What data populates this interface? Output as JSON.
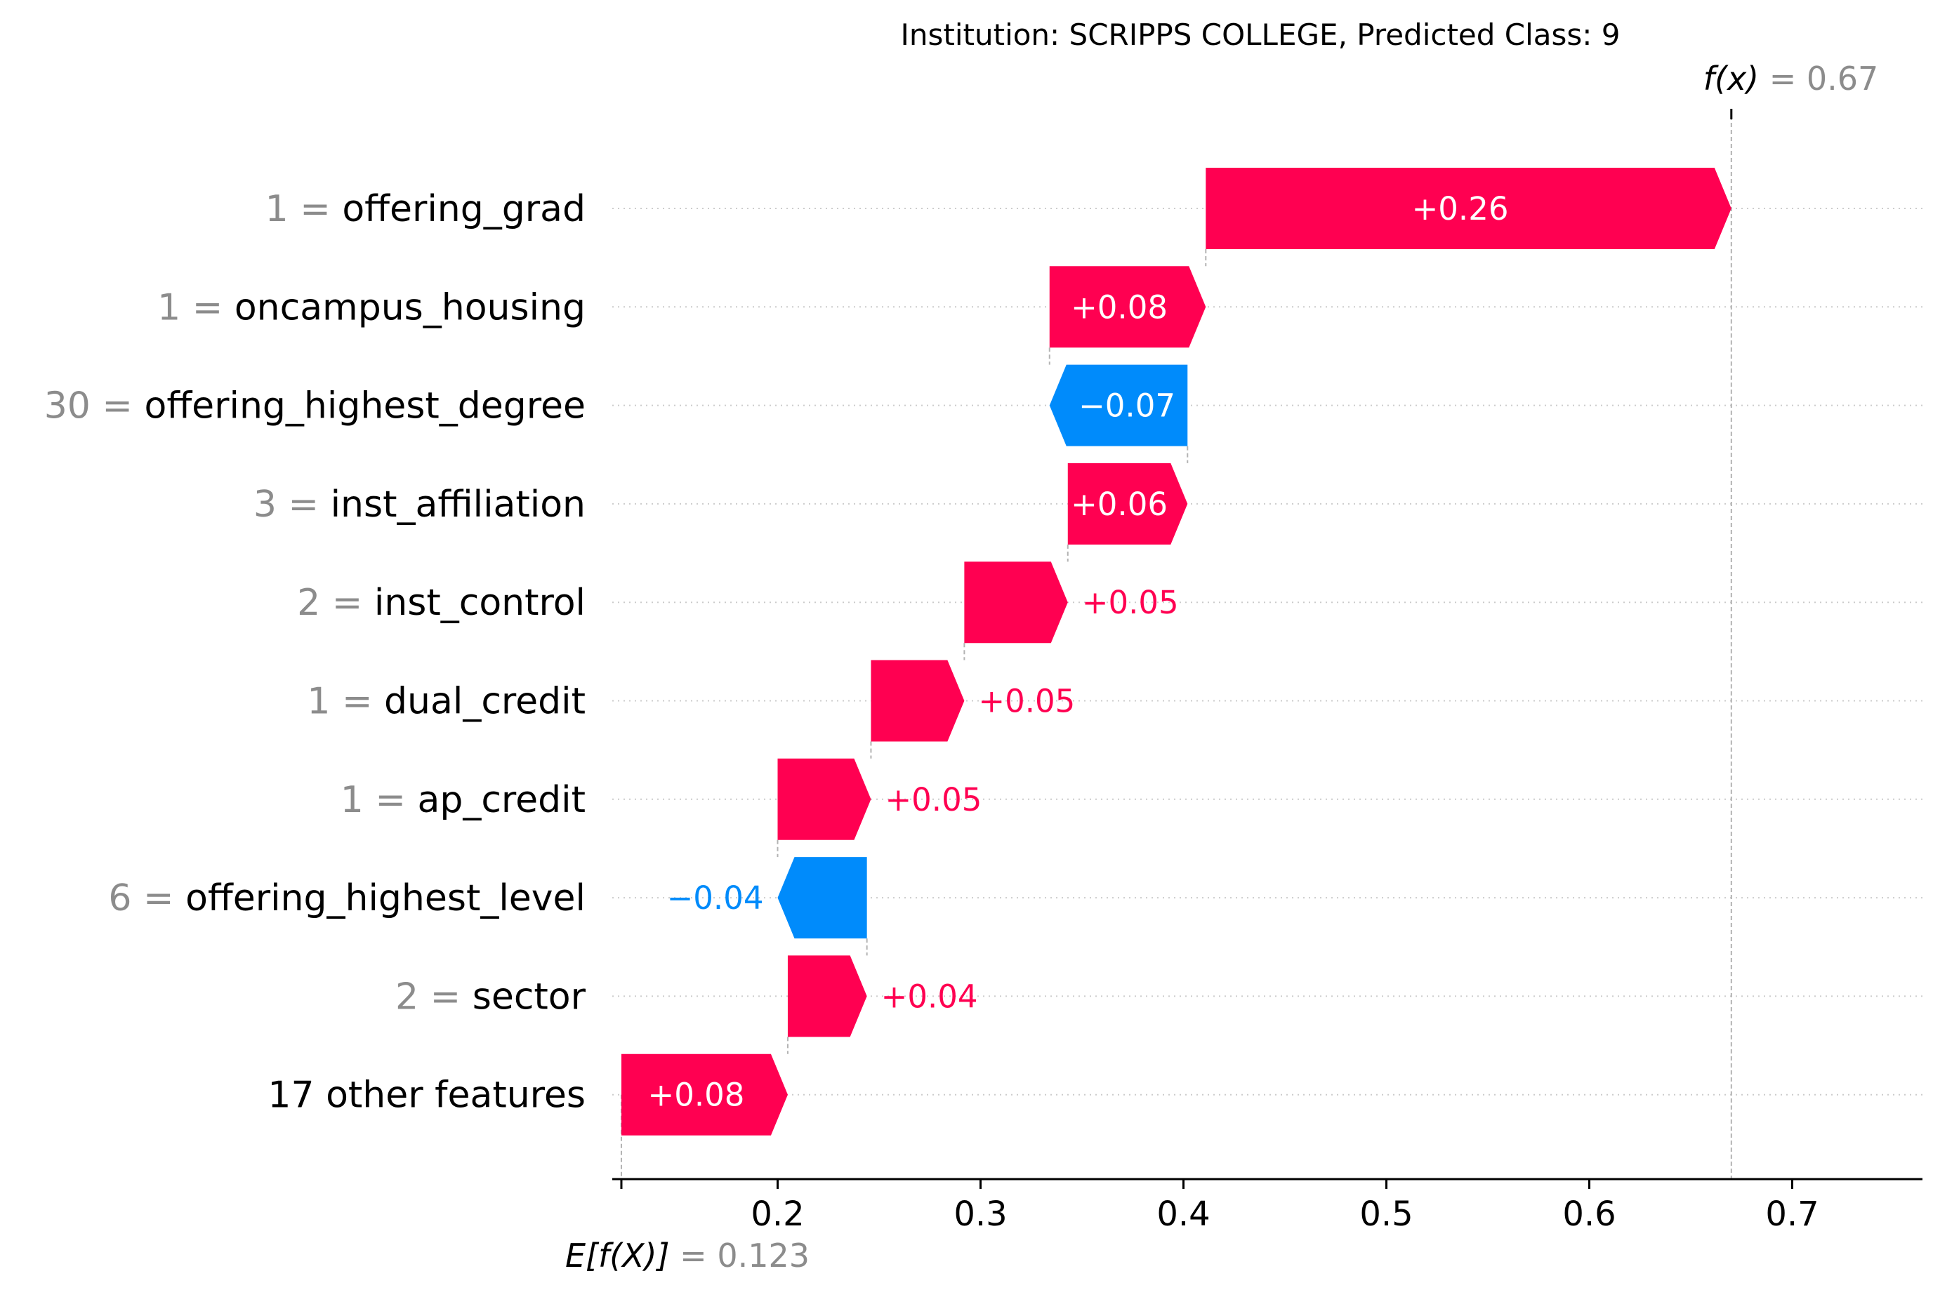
{
  "chart_data": {
    "type": "waterfall",
    "title": "Institution: SCRIPPS COLLEGE, Predicted Class: 9",
    "base_value": 0.123,
    "output_value": 0.67,
    "expected_label": {
      "symbol": "E[f(X)]",
      "eq": " = ",
      "value": "0.123"
    },
    "output_label": {
      "symbol": "f(x)",
      "eq": " = ",
      "value": "0.67"
    },
    "xlim": [
      0.12,
      0.76
    ],
    "xticks": [
      0.2,
      0.3,
      0.4,
      0.5,
      0.6,
      0.7
    ],
    "xtick_labels": [
      "0.2",
      "0.3",
      "0.4",
      "0.5",
      "0.6",
      "0.7"
    ],
    "features": [
      {
        "value_text": "1",
        "name": "offering_grad",
        "label": "+0.26",
        "start": 0.411,
        "end": 0.67
      },
      {
        "value_text": "1",
        "name": "oncampus_housing",
        "label": "+0.08",
        "start": 0.334,
        "end": 0.411
      },
      {
        "value_text": "30",
        "name": "offering_highest_degree",
        "label": "−0.07",
        "start": 0.402,
        "end": 0.334
      },
      {
        "value_text": "3",
        "name": "inst_affiliation",
        "label": "+0.06",
        "start": 0.343,
        "end": 0.402
      },
      {
        "value_text": "2",
        "name": "inst_control",
        "label": "+0.05",
        "start": 0.292,
        "end": 0.343
      },
      {
        "value_text": "1",
        "name": "dual_credit",
        "label": "+0.05",
        "start": 0.246,
        "end": 0.292
      },
      {
        "value_text": "1",
        "name": "ap_credit",
        "label": "+0.05",
        "start": 0.2,
        "end": 0.246
      },
      {
        "value_text": "6",
        "name": "offering_highest_level",
        "label": "−0.04",
        "start": 0.244,
        "end": 0.2
      },
      {
        "value_text": "2",
        "name": "sector",
        "label": "+0.04",
        "start": 0.205,
        "end": 0.244
      },
      {
        "value_text": "",
        "name": "17 other features",
        "label": "+0.08",
        "start": 0.123,
        "end": 0.205
      }
    ],
    "colors": {
      "positive": "#ff0051",
      "negative": "#008bfb",
      "gray": "#8c8c8c"
    },
    "grid": "horizontal-dotted"
  }
}
